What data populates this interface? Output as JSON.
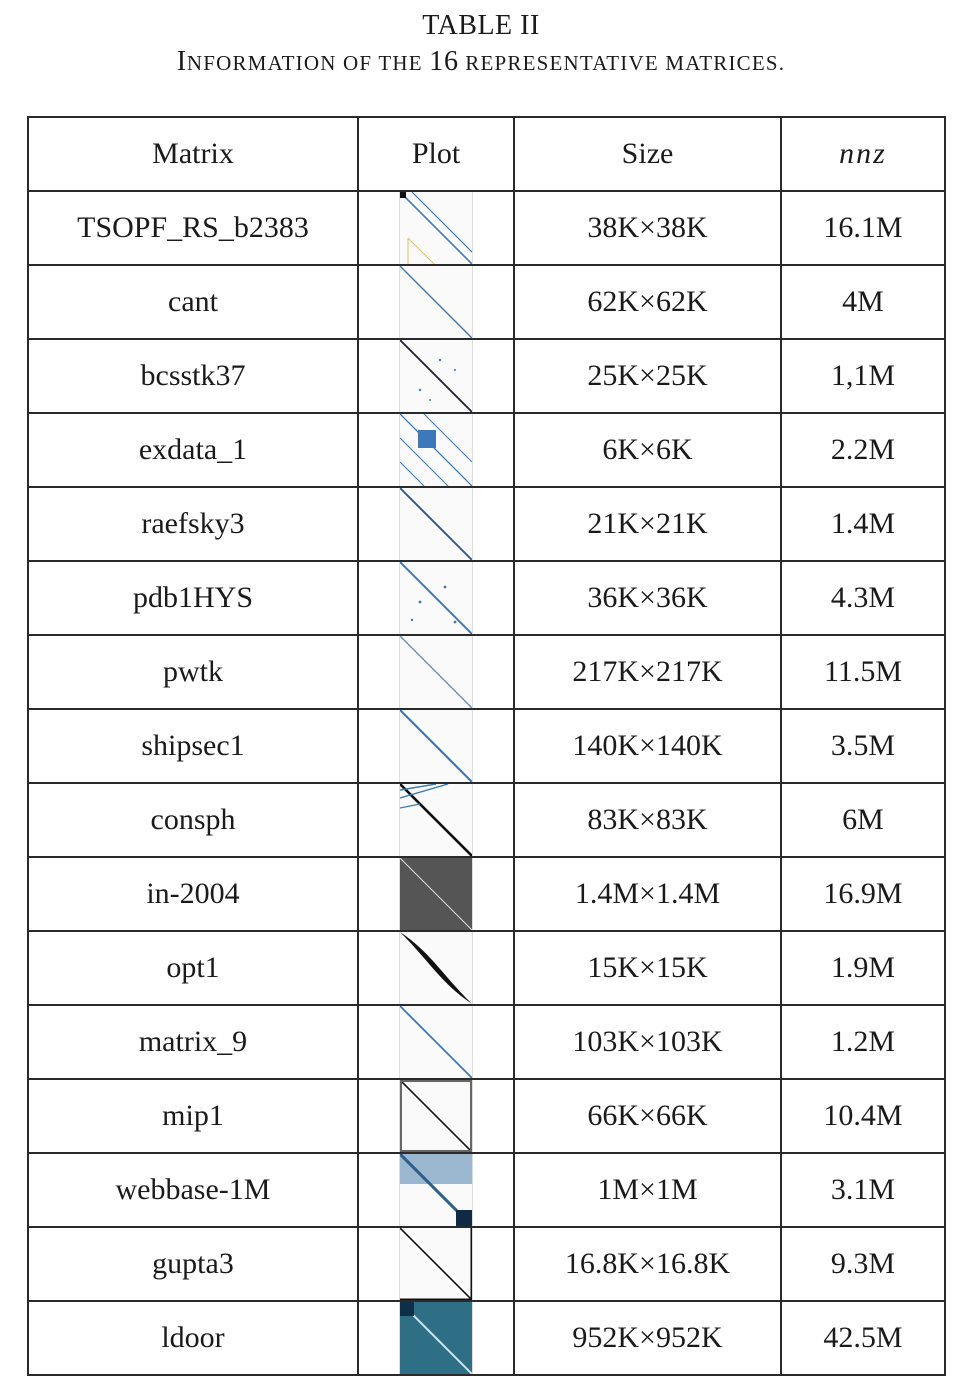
{
  "caption": {
    "label": "TABLE II",
    "title_first": "I",
    "title_rest": "NFORMATION OF THE ",
    "title_num": "16",
    "title_end": " REPRESENTATIVE MATRICES."
  },
  "headers": {
    "matrix": "Matrix",
    "plot": "Plot",
    "size": "Size",
    "nnz": "nnz"
  },
  "rows": [
    {
      "matrix": "TSOPF_RS_b2383",
      "size": "38K×38K",
      "nnz": "16.1M",
      "plot_icon": "sparsity-plot-icon"
    },
    {
      "matrix": "cant",
      "size": "62K×62K",
      "nnz": "4M",
      "plot_icon": "sparsity-plot-icon"
    },
    {
      "matrix": "bcsstk37",
      "size": "25K×25K",
      "nnz": "1,1M",
      "plot_icon": "sparsity-plot-icon"
    },
    {
      "matrix": "exdata_1",
      "size": "6K×6K",
      "nnz": "2.2M",
      "plot_icon": "sparsity-plot-icon"
    },
    {
      "matrix": "raefsky3",
      "size": "21K×21K",
      "nnz": "1.4M",
      "plot_icon": "sparsity-plot-icon"
    },
    {
      "matrix": "pdb1HYS",
      "size": "36K×36K",
      "nnz": "4.3M",
      "plot_icon": "sparsity-plot-icon"
    },
    {
      "matrix": "pwtk",
      "size": "217K×217K",
      "nnz": "11.5M",
      "plot_icon": "sparsity-plot-icon"
    },
    {
      "matrix": "shipsec1",
      "size": "140K×140K",
      "nnz": "3.5M",
      "plot_icon": "sparsity-plot-icon"
    },
    {
      "matrix": "consph",
      "size": "83K×83K",
      "nnz": "6M",
      "plot_icon": "sparsity-plot-icon"
    },
    {
      "matrix": "in-2004",
      "size": "1.4M×1.4M",
      "nnz": "16.9M",
      "plot_icon": "sparsity-plot-icon"
    },
    {
      "matrix": "opt1",
      "size": "15K×15K",
      "nnz": "1.9M",
      "plot_icon": "sparsity-plot-icon"
    },
    {
      "matrix": "matrix_9",
      "size": "103K×103K",
      "nnz": "1.2M",
      "plot_icon": "sparsity-plot-icon"
    },
    {
      "matrix": "mip1",
      "size": "66K×66K",
      "nnz": "10.4M",
      "plot_icon": "sparsity-plot-icon"
    },
    {
      "matrix": "webbase-1M",
      "size": "1M×1M",
      "nnz": "3.1M",
      "plot_icon": "sparsity-plot-icon"
    },
    {
      "matrix": "gupta3",
      "size": "16.8K×16.8K",
      "nnz": "9.3M",
      "plot_icon": "sparsity-plot-icon"
    },
    {
      "matrix": "ldoor",
      "size": "952K×952K",
      "nnz": "42.5M",
      "plot_icon": "sparsity-plot-icon"
    }
  ]
}
